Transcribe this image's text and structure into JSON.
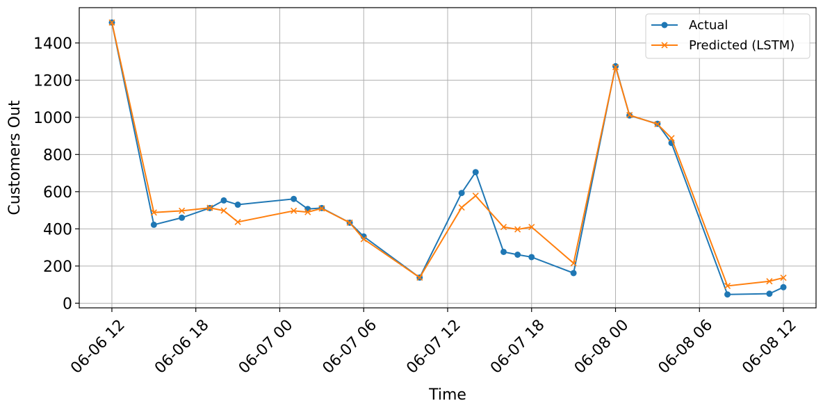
{
  "chart_data": {
    "type": "line",
    "title": "",
    "xlabel": "Time",
    "ylabel": "Customers Out",
    "x_ticks": [
      "06-06 12",
      "06-06 18",
      "06-07 00",
      "06-07 06",
      "06-07 12",
      "06-07 18",
      "06-08 00",
      "06-08 06",
      "06-08 12"
    ],
    "y_ticks": [
      "0",
      "200",
      "400",
      "600",
      "800",
      "1000",
      "1200",
      "1400"
    ],
    "x_range": [
      "2024-06-06 09:40",
      "2024-06-08 14:20"
    ],
    "ylim": [
      -25,
      1590
    ],
    "grid": true,
    "legend": "upper-right",
    "series": [
      {
        "name": "Actual",
        "color": "#1f77b4",
        "marker": "circle",
        "points": [
          [
            "2024-06-06 12:00",
            1510
          ],
          [
            "2024-06-06 15:00",
            422
          ],
          [
            "2024-06-06 17:00",
            460
          ],
          [
            "2024-06-06 19:00",
            512
          ],
          [
            "2024-06-06 20:00",
            553
          ],
          [
            "2024-06-06 21:00",
            530
          ],
          [
            "2024-06-07 01:00",
            561
          ],
          [
            "2024-06-07 02:00",
            507
          ],
          [
            "2024-06-07 03:00",
            512
          ],
          [
            "2024-06-07 05:00",
            433
          ],
          [
            "2024-06-07 06:00",
            359
          ],
          [
            "2024-06-07 10:00",
            138
          ],
          [
            "2024-06-07 13:00",
            593
          ],
          [
            "2024-06-07 14:00",
            705
          ],
          [
            "2024-06-07 16:00",
            276
          ],
          [
            "2024-06-07 17:00",
            261
          ],
          [
            "2024-06-07 18:00",
            248
          ],
          [
            "2024-06-07 21:00",
            162
          ],
          [
            "2024-06-08 00:00",
            1275
          ],
          [
            "2024-06-08 01:00",
            1010
          ],
          [
            "2024-06-08 03:00",
            965
          ],
          [
            "2024-06-08 04:00",
            862
          ],
          [
            "2024-06-08 08:00",
            47
          ],
          [
            "2024-06-08 11:00",
            51
          ],
          [
            "2024-06-08 12:00",
            86
          ]
        ]
      },
      {
        "name": "Predicted (LSTM)",
        "color": "#ff7f0e",
        "marker": "x",
        "points": [
          [
            "2024-06-06 12:00",
            1510
          ],
          [
            "2024-06-06 15:00",
            488
          ],
          [
            "2024-06-06 17:00",
            497
          ],
          [
            "2024-06-06 19:00",
            513
          ],
          [
            "2024-06-06 20:00",
            498
          ],
          [
            "2024-06-06 21:00",
            437
          ],
          [
            "2024-06-07 01:00",
            497
          ],
          [
            "2024-06-07 02:00",
            490
          ],
          [
            "2024-06-07 03:00",
            510
          ],
          [
            "2024-06-07 05:00",
            433
          ],
          [
            "2024-06-07 06:00",
            345
          ],
          [
            "2024-06-07 10:00",
            138
          ],
          [
            "2024-06-07 13:00",
            515
          ],
          [
            "2024-06-07 14:00",
            578
          ],
          [
            "2024-06-07 16:00",
            410
          ],
          [
            "2024-06-07 17:00",
            397
          ],
          [
            "2024-06-07 18:00",
            410
          ],
          [
            "2024-06-07 21:00",
            215
          ],
          [
            "2024-06-08 00:00",
            1270
          ],
          [
            "2024-06-08 01:00",
            1012
          ],
          [
            "2024-06-08 03:00",
            963
          ],
          [
            "2024-06-08 04:00",
            888
          ],
          [
            "2024-06-08 08:00",
            93
          ],
          [
            "2024-06-08 11:00",
            118
          ],
          [
            "2024-06-08 12:00",
            137
          ]
        ]
      }
    ]
  }
}
